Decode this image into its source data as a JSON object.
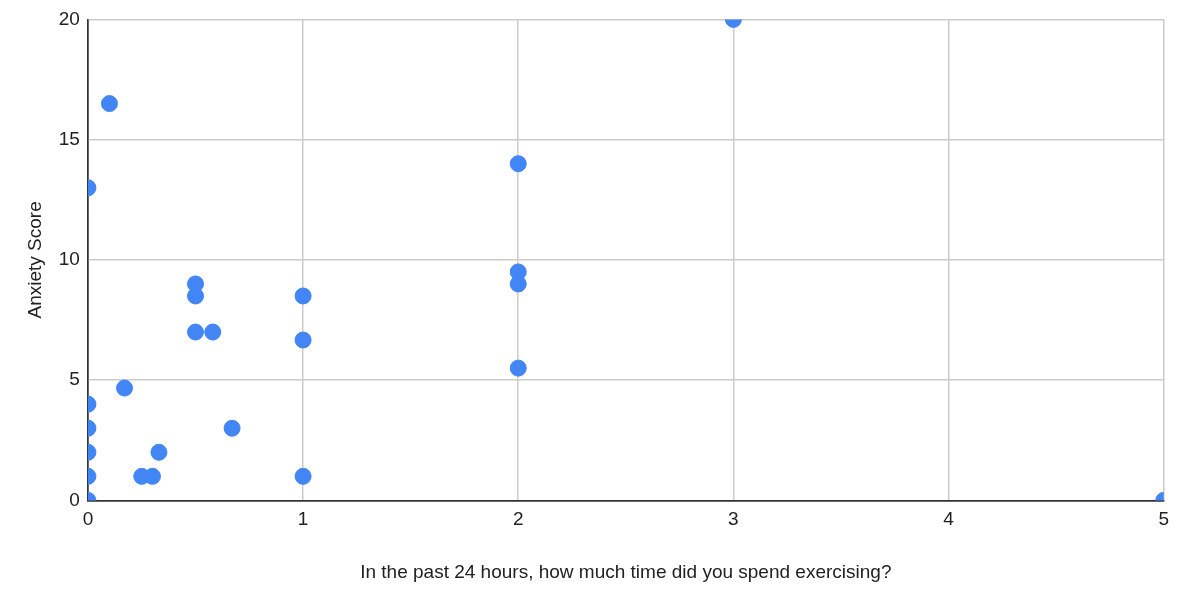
{
  "chart_data": {
    "type": "scatter",
    "xlabel": "In the past 24 hours, how much time did you spend exercising?",
    "ylabel": "Anxiety Score",
    "series": [
      {
        "color": "#4285f4",
        "x": [
          0,
          0,
          0,
          0,
          0,
          0,
          0.1,
          0.17,
          0.25,
          0.3,
          0.33,
          0.5,
          0.5,
          0.5,
          0.58,
          0.67,
          1,
          1,
          1,
          2,
          2,
          2,
          2,
          3,
          5
        ],
        "values": [
          0,
          1,
          2,
          3,
          4,
          13,
          16.5,
          4.67,
          1,
          1,
          2,
          9,
          8.5,
          7,
          7,
          3,
          8.5,
          6.67,
          1,
          14,
          9.5,
          9,
          5.5,
          20,
          0
        ]
      }
    ],
    "xlim": [
      0,
      5
    ],
    "xticks": [
      0,
      1,
      2,
      3,
      4,
      5
    ],
    "ylim": [
      0,
      20
    ],
    "yticks": [
      0,
      5,
      10,
      15,
      20
    ],
    "grid": true,
    "legend": false,
    "marker": "circle"
  }
}
